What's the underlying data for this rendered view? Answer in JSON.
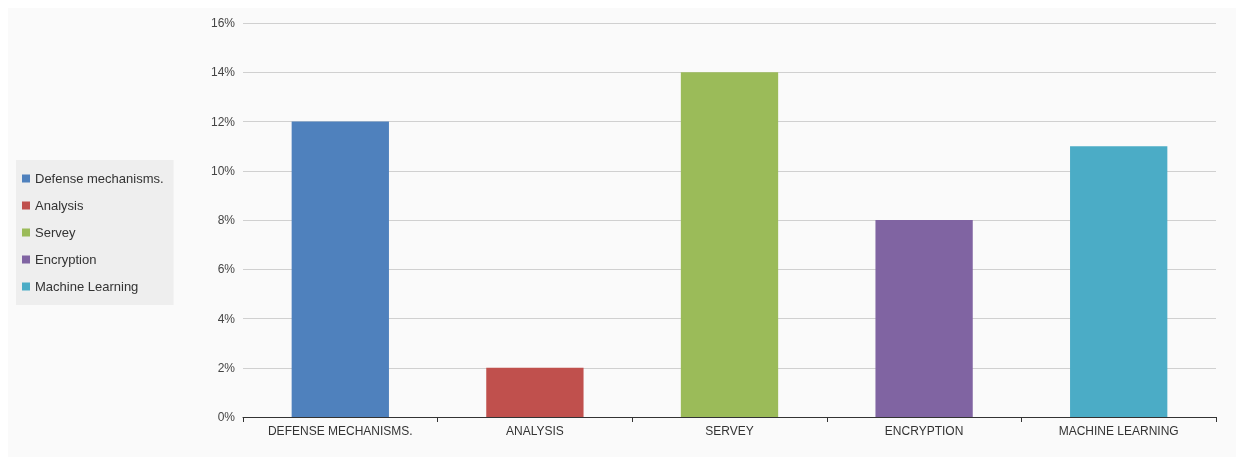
{
  "chart_data": {
    "type": "bar",
    "categories": [
      "DEFENSE MECHANISMS.",
      "ANALYSIS",
      "SERVEY",
      "ENCRYPTION",
      "MACHINE LEARNING"
    ],
    "series": [
      {
        "name": "Defense mechanisms.",
        "color": "#4f81bd",
        "values": [
          12,
          null,
          null,
          null,
          null
        ]
      },
      {
        "name": "Analysis",
        "color": "#c0504d",
        "values": [
          null,
          2,
          null,
          null,
          null
        ]
      },
      {
        "name": "Servey",
        "color": "#9bbb59",
        "values": [
          null,
          null,
          14,
          null,
          null
        ]
      },
      {
        "name": "Encryption",
        "color": "#8064a2",
        "values": [
          null,
          null,
          null,
          8,
          null
        ]
      },
      {
        "name": "Machine Learning",
        "color": "#4bacc6",
        "values": [
          null,
          null,
          null,
          null,
          11
        ]
      }
    ],
    "stacked": true,
    "ylim": [
      0,
      16
    ],
    "yticks": [
      {
        "value": 0,
        "label": "0%"
      },
      {
        "value": 2,
        "label": "2%"
      },
      {
        "value": 4,
        "label": "4%"
      },
      {
        "value": 6,
        "label": "6%"
      },
      {
        "value": 8,
        "label": "8%"
      },
      {
        "value": 10,
        "label": "10%"
      },
      {
        "value": 12,
        "label": "12%"
      },
      {
        "value": 14,
        "label": "14%"
      },
      {
        "value": 16,
        "label": "16%"
      }
    ],
    "grid": "y",
    "legend": "left"
  }
}
